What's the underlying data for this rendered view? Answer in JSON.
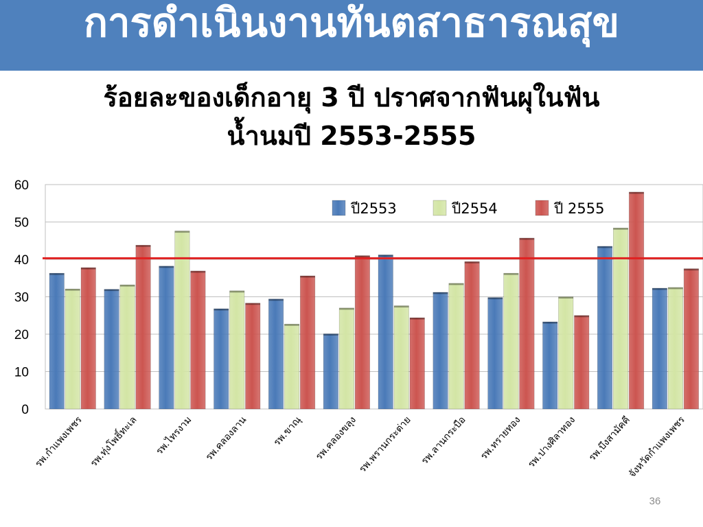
{
  "slide": {
    "header_title": "การดำเนินงานทันตสาธารณสุข",
    "title_line1": "ร้อยละของเด็กอายุ 3 ปี ปราศจากฟันผุในฟัน",
    "title_line2": "น้ำนมปี 2553-2555",
    "page_number": "36"
  },
  "colors": {
    "header_band": "#4f81bd",
    "series_2553": "#4a7ab8",
    "series_2554": "#d3e5a5",
    "series_2555": "#cc5550",
    "target_line": "#e02020"
  },
  "chart_data": {
    "type": "bar",
    "categories": [
      "รพ.กำแพงเพชร",
      "รพ.ทุ่งโพธิ์ทะเล",
      "รพ.ไทรงาม",
      "รพ.คลองลาน",
      "รพ.ขาณุ",
      "รพ.คลองขลุง",
      "รพ.พรานกระต่าย",
      "รพ.ลานกระบือ",
      "รพ.ทรายทอง",
      "รพ.ปางศิลาทอง",
      "รพ.บึงสามัคคี",
      "จังหวัดกำแพงเพชร"
    ],
    "series": [
      {
        "name": "ปี2553",
        "values": [
          36.3,
          32.0,
          38.2,
          26.8,
          29.4,
          20.1,
          41.2,
          31.2,
          29.8,
          23.3,
          43.5,
          32.3
        ]
      },
      {
        "name": "ปี2554",
        "values": [
          32.1,
          33.2,
          47.6,
          31.6,
          22.7,
          27.0,
          27.6,
          33.6,
          36.3,
          30.0,
          48.4,
          32.5
        ]
      },
      {
        "name": "ปี 2555",
        "values": [
          37.8,
          43.8,
          36.9,
          28.3,
          35.6,
          41.0,
          24.4,
          39.4,
          45.7,
          25.0,
          58.0,
          37.5
        ]
      }
    ],
    "reference_line": 40.3,
    "ylim": [
      0,
      60
    ],
    "yticks": [
      "0",
      "10",
      "20",
      "30",
      "40",
      "50",
      "60"
    ],
    "grid": true,
    "legend_position": "top-right"
  }
}
